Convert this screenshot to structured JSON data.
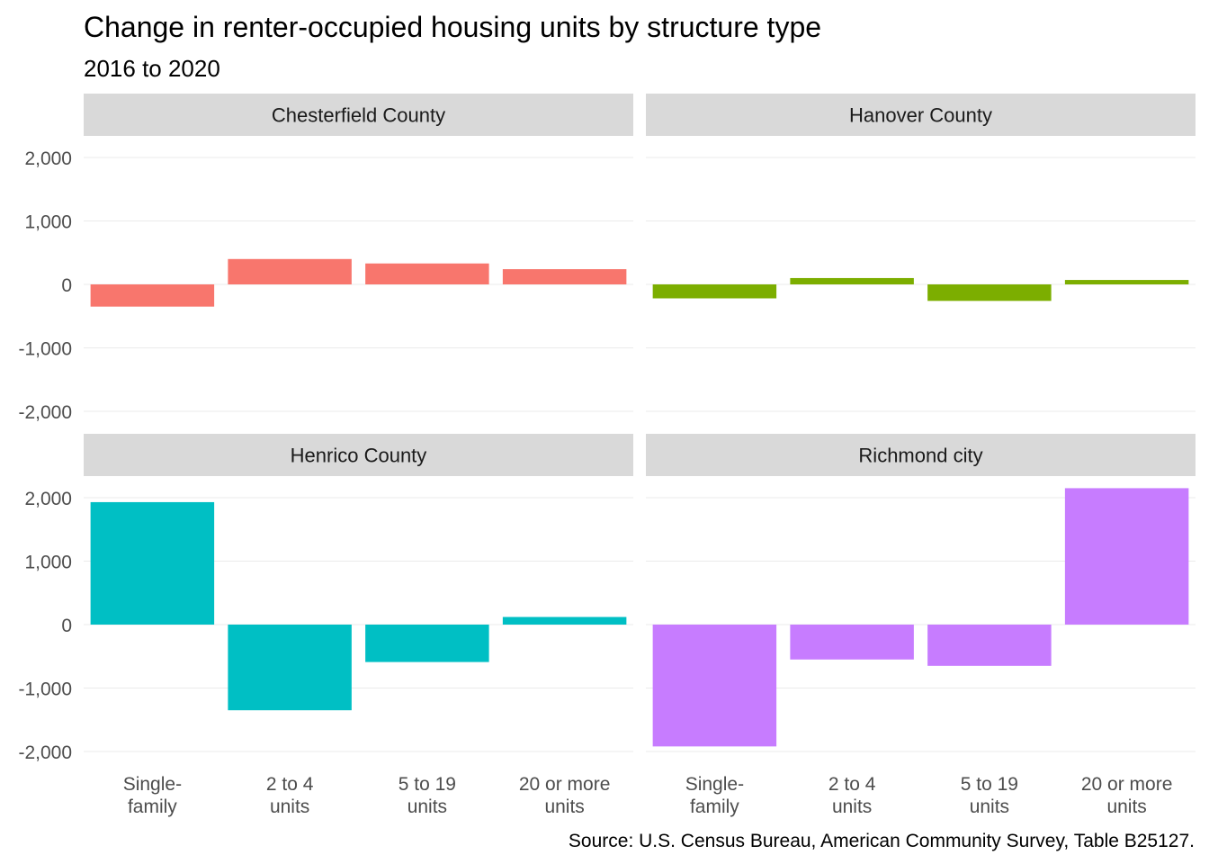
{
  "chart_data": {
    "type": "bar",
    "title": "Change in renter-occupied housing units by structure type",
    "subtitle": "2016 to 2020",
    "caption": "Source: U.S. Census Bureau, American Community Survey, Table B25127.",
    "categories": [
      [
        "Single-",
        "family"
      ],
      [
        "2 to 4",
        "units"
      ],
      [
        "5 to 19",
        "units"
      ],
      [
        "20 or more",
        "units"
      ]
    ],
    "ylim": [
      -2000,
      2000
    ],
    "y_ticks": [
      2000,
      1000,
      0,
      -1000,
      -2000
    ],
    "y_tick_labels": [
      "2,000",
      "1,000",
      "0",
      "-1,000",
      "-2,000"
    ],
    "grid": true,
    "legend": "none",
    "facets": [
      {
        "name": "Chesterfield County",
        "color": "#F8766D",
        "values": [
          -350,
          400,
          330,
          240
        ]
      },
      {
        "name": "Hanover County",
        "color": "#7CAE00",
        "values": [
          -220,
          100,
          -260,
          70
        ]
      },
      {
        "name": "Henrico County",
        "color": "#00BFC4",
        "values": [
          1930,
          -1350,
          -590,
          120
        ]
      },
      {
        "name": "Richmond city",
        "color": "#C77CFF",
        "values": [
          -1920,
          -550,
          -650,
          2150
        ]
      }
    ]
  }
}
